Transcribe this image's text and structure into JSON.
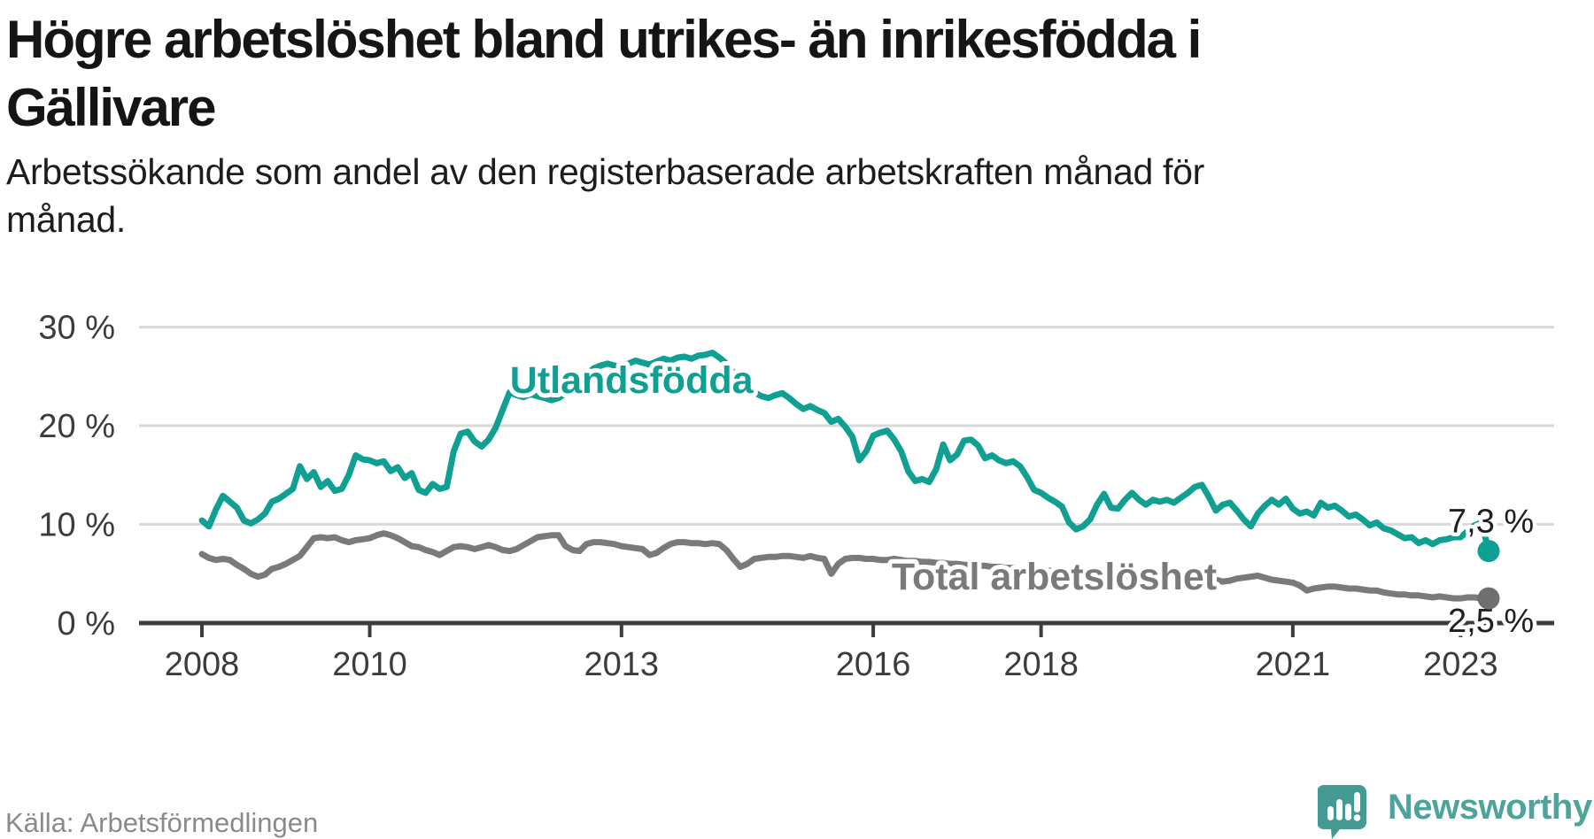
{
  "header": {
    "title_line1": "Högre arbetslöshet bland utrikes- än inrikesfödda i",
    "title_line2": "Gällivare",
    "subtitle_line1": "Arbetssökande som andel av den registerbaserade arbetskraften månad för",
    "subtitle_line2": "månad."
  },
  "footer": {
    "source": "Källa: Arbetsförmedlingen",
    "brand": "Newsworthy",
    "brand_icon": "newsworthy-bubble-barchart-icon"
  },
  "colors": {
    "teal": "#10a093",
    "teal_dot": "#0ea093",
    "gray": "#7a7a7a",
    "gray_dot": "#6f6f6f",
    "grid": "#d9d9d9",
    "axis": "#3c3c3c",
    "tick_text": "#3c3c3c",
    "value_text": "#1f1f1f",
    "logo_bubble": "#459b93",
    "logo_text": "#4ea39b",
    "halo": "#ffffff"
  },
  "chart_data": {
    "type": "line",
    "unit": "%",
    "grid": "horizontal",
    "legend_position": "inline-labels",
    "x_range": {
      "start_year": 2008,
      "start_month": 1,
      "end_year": 2023,
      "end_month": 5,
      "points": 185
    },
    "x_ticks": [
      "2008",
      "2010",
      "2013",
      "2016",
      "2018",
      "2021",
      "2023"
    ],
    "y_ticks": [
      {
        "value": 30,
        "label": "30 %"
      },
      {
        "value": 20,
        "label": "20 %"
      },
      {
        "value": 10,
        "label": "10 %"
      },
      {
        "value": 0,
        "label": "0 %"
      }
    ],
    "ylim": [
      0,
      32
    ],
    "series": [
      {
        "id": "utlandsfodda",
        "name": "Utlandsfödda",
        "color": "#10a093",
        "dot_color": "#0ea093",
        "line_style": "solid",
        "end_value": 7.3,
        "end_label": "7,3 %",
        "label_anchor": {
          "year_frac": 2011.67,
          "value": 23.32
        },
        "values": [
          10.4,
          9.8,
          11.5,
          12.9,
          12.3,
          11.7,
          10.4,
          10.1,
          10.5,
          11.1,
          12.3,
          12.6,
          13.1,
          13.6,
          15.9,
          14.6,
          15.3,
          13.8,
          14.4,
          13.4,
          13.6,
          15.0,
          17.0,
          16.6,
          16.5,
          16.2,
          16.4,
          15.4,
          15.8,
          14.7,
          15.2,
          13.5,
          13.2,
          14.1,
          13.6,
          13.8,
          17.4,
          19.2,
          19.4,
          18.4,
          17.9,
          18.6,
          19.8,
          21.6,
          23.4,
          23.1,
          22.9,
          23.2,
          23.0,
          22.8,
          22.6,
          22.8,
          23.3,
          23.9,
          24.6,
          25.2,
          25.8,
          26.1,
          26.3,
          26.1,
          26.0,
          26.3,
          26.6,
          26.4,
          26.2,
          26.5,
          26.8,
          26.6,
          26.9,
          27.0,
          26.8,
          27.1,
          27.2,
          27.4,
          26.9,
          26.3,
          25.4,
          24.5,
          23.8,
          23.4,
          23.0,
          22.8,
          23.1,
          23.3,
          22.8,
          22.2,
          21.7,
          22.0,
          21.6,
          21.3,
          20.4,
          20.7,
          19.9,
          18.9,
          16.5,
          17.4,
          19.0,
          19.3,
          19.5,
          18.6,
          17.4,
          15.4,
          14.4,
          14.6,
          14.3,
          15.6,
          18.1,
          16.5,
          17.1,
          18.5,
          18.6,
          18.0,
          16.7,
          17.0,
          16.5,
          16.2,
          16.4,
          15.9,
          14.8,
          13.5,
          13.2,
          12.7,
          12.3,
          11.8,
          10.2,
          9.5,
          9.8,
          10.5,
          12.0,
          13.1,
          11.7,
          11.6,
          12.5,
          13.2,
          12.5,
          12.0,
          12.5,
          12.3,
          12.5,
          12.2,
          12.7,
          13.2,
          13.8,
          14.0,
          12.8,
          11.4,
          12.0,
          12.2,
          11.4,
          10.5,
          9.8,
          11.1,
          11.9,
          12.5,
          12.0,
          12.6,
          11.6,
          11.1,
          11.3,
          10.9,
          12.2,
          11.7,
          11.9,
          11.4,
          10.8,
          11.0,
          10.5,
          9.9,
          10.2,
          9.6,
          9.4,
          9.0,
          8.6,
          8.7,
          8.1,
          8.4,
          8.0,
          8.4,
          8.5,
          8.7,
          8.7,
          9.3,
          9.9,
          10.2,
          7.3
        ]
      },
      {
        "id": "total",
        "name": "Total arbetslöshet",
        "color": "#7a7a7a",
        "dot_color": "#6f6f6f",
        "line_style": "solid",
        "end_value": 2.5,
        "end_label": "2,5 %",
        "label_anchor": {
          "year_frac": 2016.22,
          "value": 3.41
        },
        "values": [
          7.0,
          6.6,
          6.4,
          6.5,
          6.4,
          5.9,
          5.5,
          5.0,
          4.7,
          4.9,
          5.5,
          5.7,
          6.0,
          6.4,
          6.8,
          7.7,
          8.6,
          8.7,
          8.6,
          8.7,
          8.4,
          8.2,
          8.4,
          8.5,
          8.6,
          8.9,
          9.1,
          8.9,
          8.6,
          8.2,
          7.8,
          7.7,
          7.4,
          7.2,
          6.9,
          7.3,
          7.7,
          7.8,
          7.7,
          7.5,
          7.7,
          7.9,
          7.7,
          7.4,
          7.3,
          7.5,
          7.9,
          8.3,
          8.7,
          8.8,
          8.9,
          8.9,
          7.8,
          7.4,
          7.3,
          8.0,
          8.2,
          8.2,
          8.1,
          8.0,
          7.8,
          7.7,
          7.6,
          7.5,
          6.9,
          7.1,
          7.6,
          8.0,
          8.2,
          8.2,
          8.1,
          8.1,
          8.0,
          8.1,
          8.0,
          7.4,
          6.5,
          5.7,
          6.0,
          6.5,
          6.6,
          6.7,
          6.7,
          6.8,
          6.8,
          6.7,
          6.6,
          6.8,
          6.6,
          6.5,
          5.0,
          6.0,
          6.5,
          6.6,
          6.6,
          6.5,
          6.5,
          6.4,
          6.4,
          6.5,
          6.4,
          6.3,
          6.3,
          6.2,
          6.2,
          6.1,
          6.1,
          6.0,
          6.0,
          5.9,
          5.9,
          5.8,
          5.8,
          5.7,
          5.7,
          5.6,
          5.6,
          5.5,
          5.5,
          5.4,
          5.4,
          5.3,
          5.3,
          5.2,
          5.2,
          5.1,
          5.1,
          5.0,
          5.0,
          4.9,
          4.9,
          4.8,
          4.8,
          4.8,
          4.7,
          4.7,
          4.6,
          4.6,
          4.6,
          4.5,
          4.5,
          4.5,
          4.6,
          4.6,
          4.6,
          4.4,
          4.2,
          4.3,
          4.5,
          4.6,
          4.7,
          4.8,
          4.6,
          4.4,
          4.3,
          4.2,
          4.1,
          3.8,
          3.3,
          3.5,
          3.6,
          3.7,
          3.7,
          3.6,
          3.5,
          3.5,
          3.4,
          3.3,
          3.3,
          3.1,
          3.0,
          2.9,
          2.9,
          2.8,
          2.8,
          2.7,
          2.6,
          2.7,
          2.6,
          2.5,
          2.5,
          2.6,
          2.6,
          2.5,
          2.5
        ]
      }
    ]
  }
}
